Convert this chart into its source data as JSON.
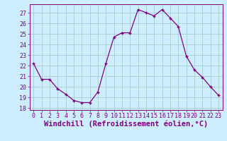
{
  "x": [
    0,
    1,
    2,
    3,
    4,
    5,
    6,
    7,
    8,
    9,
    10,
    11,
    12,
    13,
    14,
    15,
    16,
    17,
    18,
    19,
    20,
    21,
    22,
    23
  ],
  "y": [
    22.2,
    20.7,
    20.7,
    19.8,
    19.3,
    18.7,
    18.5,
    18.5,
    19.5,
    22.2,
    24.7,
    25.1,
    25.1,
    27.3,
    27.0,
    26.7,
    27.3,
    26.5,
    25.7,
    22.9,
    21.6,
    20.9,
    20.0,
    19.2
  ],
  "xlim": [
    -0.5,
    23.5
  ],
  "ylim": [
    17.8,
    27.8
  ],
  "yticks": [
    18,
    19,
    20,
    21,
    22,
    23,
    24,
    25,
    26,
    27
  ],
  "xticks": [
    0,
    1,
    2,
    3,
    4,
    5,
    6,
    7,
    8,
    9,
    10,
    11,
    12,
    13,
    14,
    15,
    16,
    17,
    18,
    19,
    20,
    21,
    22,
    23
  ],
  "xlabel": "Windchill (Refroidissement éolien,°C)",
  "line_color": "#800080",
  "marker": "+",
  "bg_color": "#cceeff",
  "grid_color": "#aacccc",
  "tick_color": "#800080",
  "label_color": "#800080",
  "xlabel_fontsize": 7.5,
  "tick_fontsize": 6.0
}
